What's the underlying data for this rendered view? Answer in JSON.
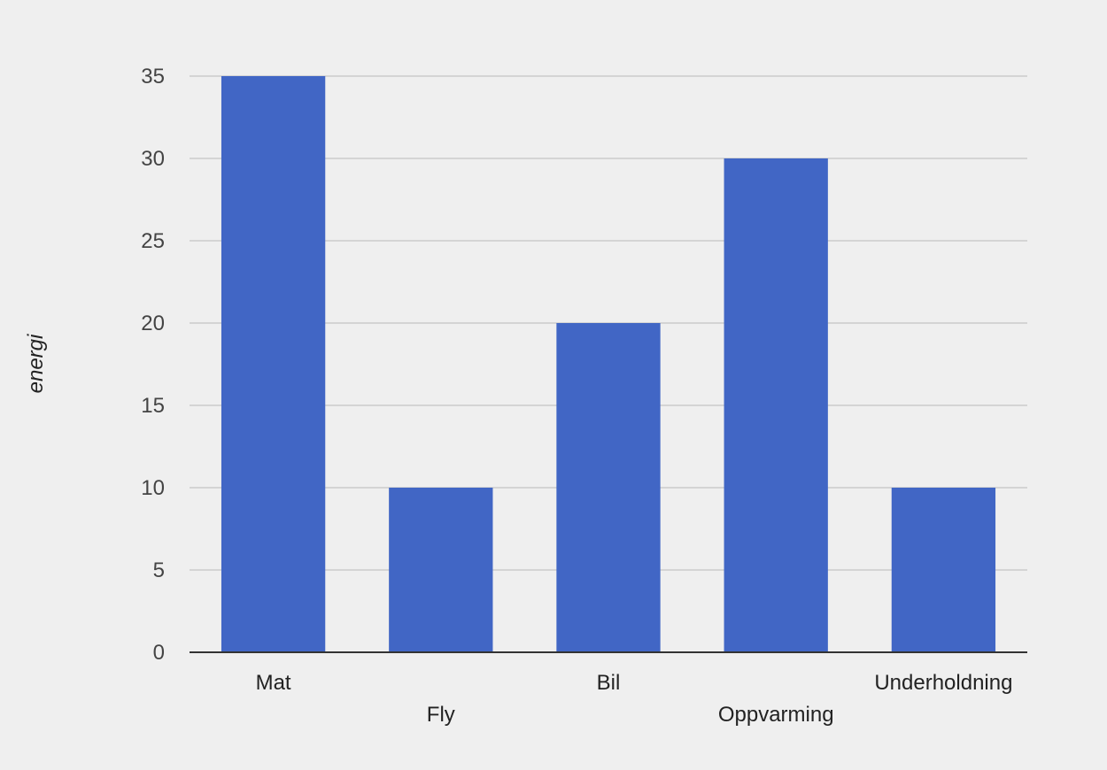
{
  "chart_data": {
    "type": "bar",
    "title": "",
    "xlabel": "",
    "ylabel": "energi",
    "categories": [
      "Mat",
      "Fly",
      "Bil",
      "Oppvarming",
      "Underholdning"
    ],
    "values": [
      35,
      10,
      20,
      30,
      10
    ],
    "ylim": [
      0,
      35
    ],
    "yticks": [
      0,
      5,
      10,
      15,
      20,
      25,
      30,
      35
    ],
    "grid": true,
    "legend": "none",
    "bar_color": "#4166c5",
    "grid_color": "#cccccc",
    "axis_color": "#333333"
  }
}
